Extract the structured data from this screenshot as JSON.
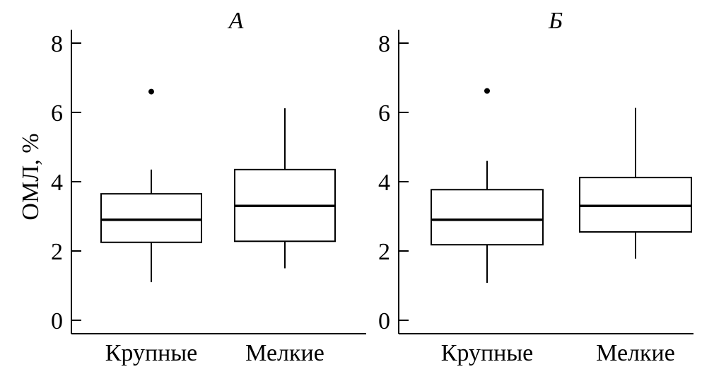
{
  "chart_data": [
    {
      "type": "box",
      "title": "А",
      "ylabel": "ОМЛ, %",
      "xlabel": "",
      "ylim": [
        0,
        8
      ],
      "yticks": [
        0,
        2,
        4,
        6,
        8
      ],
      "categories": [
        "Крупные",
        "Мелкие"
      ],
      "boxes": [
        {
          "category": "Крупные",
          "whisker_low": 1.1,
          "q1": 2.25,
          "median": 2.9,
          "q3": 3.65,
          "whisker_high": 4.35,
          "outliers": [
            6.6
          ]
        },
        {
          "category": "Мелкие",
          "whisker_low": 1.5,
          "q1": 2.28,
          "median": 3.3,
          "q3": 4.35,
          "whisker_high": 6.12,
          "outliers": []
        }
      ]
    },
    {
      "type": "box",
      "title": "Б",
      "ylabel": "",
      "xlabel": "",
      "ylim": [
        0,
        8
      ],
      "yticks": [
        0,
        2,
        4,
        6,
        8
      ],
      "categories": [
        "Крупные",
        "Мелкие"
      ],
      "boxes": [
        {
          "category": "Крупные",
          "whisker_low": 1.08,
          "q1": 2.18,
          "median": 2.9,
          "q3": 3.77,
          "whisker_high": 4.6,
          "outliers": [
            6.62
          ]
        },
        {
          "category": "Мелкие",
          "whisker_low": 1.78,
          "q1": 2.55,
          "median": 3.3,
          "q3": 4.12,
          "whisker_high": 6.13,
          "outliers": []
        }
      ]
    }
  ]
}
